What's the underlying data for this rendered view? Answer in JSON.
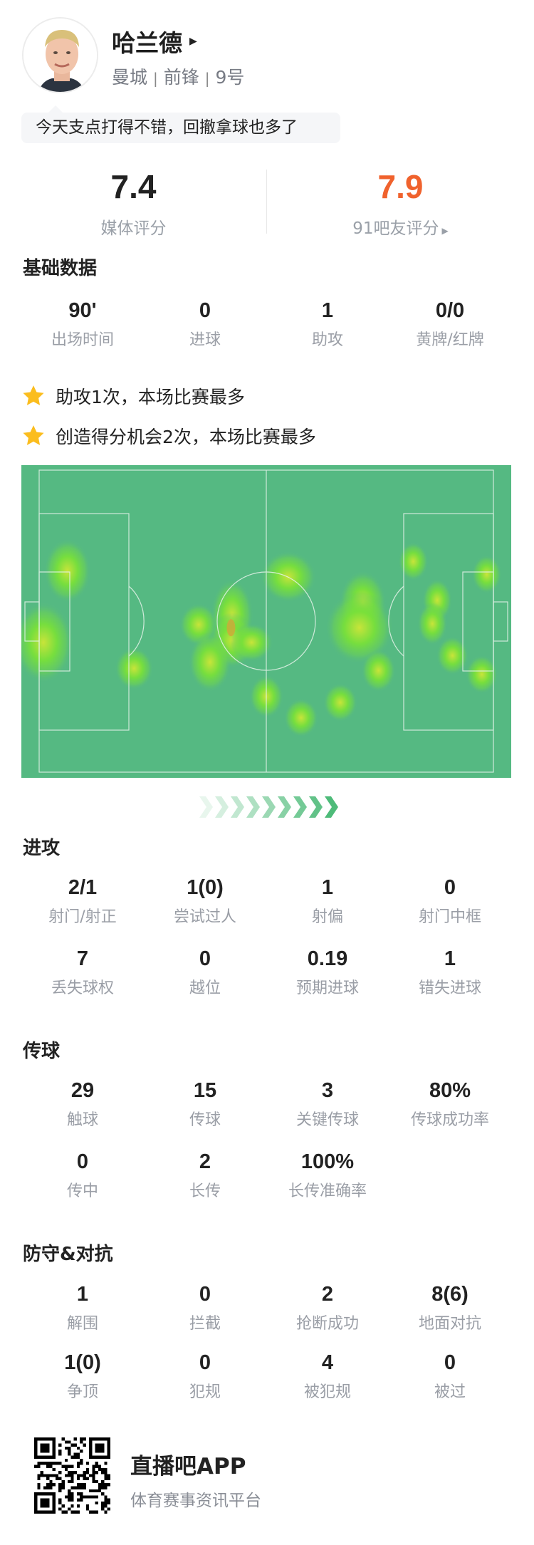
{
  "player": {
    "name": "哈兰德",
    "team": "曼城",
    "position": "前锋",
    "number": "9号",
    "comment": "今天支点打得不错，回撤拿球也多了"
  },
  "ratings": {
    "media": {
      "value": "7.4",
      "label": "媒体评分"
    },
    "fans": {
      "value": "7.9",
      "label": "91吧友评分",
      "color": "#f0622d"
    }
  },
  "basic": {
    "title": "基础数据",
    "stats": [
      {
        "value": "90'",
        "label": "出场时间"
      },
      {
        "value": "0",
        "label": "进球"
      },
      {
        "value": "1",
        "label": "助攻"
      },
      {
        "value": "0/0",
        "label": "黄牌/红牌"
      }
    ]
  },
  "highlights": [
    {
      "icon": "star-icon",
      "text": "助攻1次，本场比赛最多"
    },
    {
      "icon": "star-icon",
      "text": "创造得分机会2次，本场比赛最多"
    }
  ],
  "heatmap": {
    "pitch_color": "#55b982",
    "direction": "left-to-right"
  },
  "attack": {
    "title": "进攻",
    "stats": [
      {
        "value": "2/1",
        "label": "射门/射正"
      },
      {
        "value": "1(0)",
        "label": "尝试过人"
      },
      {
        "value": "1",
        "label": "射偏"
      },
      {
        "value": "0",
        "label": "射门中框"
      },
      {
        "value": "7",
        "label": "丢失球权"
      },
      {
        "value": "0",
        "label": "越位"
      },
      {
        "value": "0.19",
        "label": "预期进球"
      },
      {
        "value": "1",
        "label": "错失进球"
      }
    ]
  },
  "passing": {
    "title": "传球",
    "stats": [
      {
        "value": "29",
        "label": "触球"
      },
      {
        "value": "15",
        "label": "传球"
      },
      {
        "value": "3",
        "label": "关键传球"
      },
      {
        "value": "80%",
        "label": "传球成功率"
      },
      {
        "value": "0",
        "label": "传中"
      },
      {
        "value": "2",
        "label": "长传"
      },
      {
        "value": "100%",
        "label": "长传准确率"
      }
    ]
  },
  "defense": {
    "title": "防守&对抗",
    "stats": [
      {
        "value": "1",
        "label": "解围"
      },
      {
        "value": "0",
        "label": "拦截"
      },
      {
        "value": "2",
        "label": "抢断成功"
      },
      {
        "value": "8(6)",
        "label": "地面对抗"
      },
      {
        "value": "1(0)",
        "label": "争顶"
      },
      {
        "value": "0",
        "label": "犯规"
      },
      {
        "value": "4",
        "label": "被犯规"
      },
      {
        "value": "0",
        "label": "被过"
      }
    ]
  },
  "footer": {
    "app_name": "直播吧APP",
    "tagline": "体育赛事资讯平台"
  }
}
